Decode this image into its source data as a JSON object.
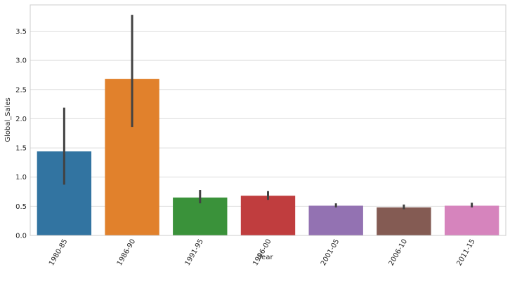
{
  "chart_data": {
    "type": "bar",
    "xlabel": "Year",
    "ylabel": "Global_Sales",
    "ylim": [
      0,
      3.95
    ],
    "yticks": [
      0.0,
      0.5,
      1.0,
      1.5,
      2.0,
      2.5,
      3.0,
      3.5
    ],
    "grid": "horizontal",
    "categories": [
      "1980-85",
      "1986-90",
      "1991-95",
      "1996-00",
      "2001-05",
      "2006-10",
      "2011-15"
    ],
    "values": [
      1.44,
      2.68,
      0.65,
      0.68,
      0.51,
      0.48,
      0.51
    ],
    "error_low": [
      0.87,
      1.86,
      0.55,
      0.61,
      0.48,
      0.45,
      0.48
    ],
    "error_high": [
      2.19,
      3.78,
      0.78,
      0.76,
      0.55,
      0.53,
      0.56
    ],
    "colors": [
      "#3274a1",
      "#e1812c",
      "#3a923a",
      "#c03d3e",
      "#9372b2",
      "#845b53",
      "#d684bd"
    ],
    "tick_label_rotation_deg": -60
  }
}
